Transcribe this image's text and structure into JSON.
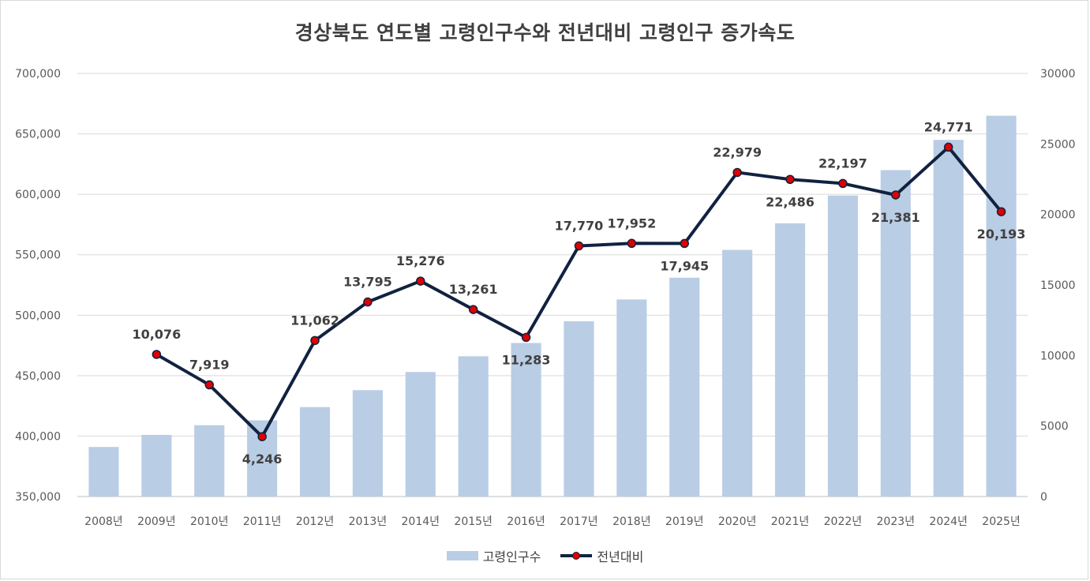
{
  "chart_data": {
    "type": "bar+line",
    "title": "경상북도 연도별 고령인구수와 전년대비 고령인구 증가속도",
    "categories": [
      "2008년",
      "2009년",
      "2010년",
      "2011년",
      "2012년",
      "2013년",
      "2014년",
      "2015년",
      "2016년",
      "2017년",
      "2018년",
      "2019년",
      "2020년",
      "2021년",
      "2022년",
      "2023년",
      "2024년",
      "2025년"
    ],
    "series": [
      {
        "name": "고령인구수",
        "type": "bar",
        "axis": "left",
        "color": "#b9cde5",
        "values": [
          391000,
          401000,
          409000,
          413000,
          424000,
          438000,
          453000,
          466000,
          477000,
          495000,
          513000,
          531000,
          554000,
          576000,
          599000,
          620000,
          645000,
          665000
        ]
      },
      {
        "name": "전년대비",
        "type": "line",
        "axis": "right",
        "color": "#112240",
        "marker_color": "#e00000",
        "values": [
          null,
          10076,
          7919,
          4246,
          11062,
          13795,
          15276,
          13261,
          11283,
          17770,
          17952,
          17945,
          22979,
          22486,
          22197,
          21381,
          24771,
          20193
        ],
        "labels": [
          "",
          "10,076",
          "7,919",
          "4,246",
          "11,062",
          "13,795",
          "15,276",
          "13,261",
          "11,283",
          "17,770",
          "17,952",
          "17,945",
          "22,979",
          "22,486",
          "22,197",
          "21,381",
          "24,771",
          "20,193"
        ]
      }
    ],
    "y_left": {
      "range": [
        350000,
        700000
      ],
      "ticks": [
        "350,000",
        "400,000",
        "450,000",
        "500,000",
        "550,000",
        "600,000",
        "650,000",
        "700,000"
      ],
      "tick_values": [
        350000,
        400000,
        450000,
        500000,
        550000,
        600000,
        650000,
        700000
      ]
    },
    "y_right": {
      "range": [
        0,
        30000
      ],
      "ticks": [
        "0",
        "5000",
        "10000",
        "15000",
        "20000",
        "25000",
        "30000"
      ],
      "tick_values": [
        0,
        5000,
        10000,
        15000,
        20000,
        25000,
        30000
      ]
    },
    "grid": true,
    "legend_position": "bottom"
  }
}
